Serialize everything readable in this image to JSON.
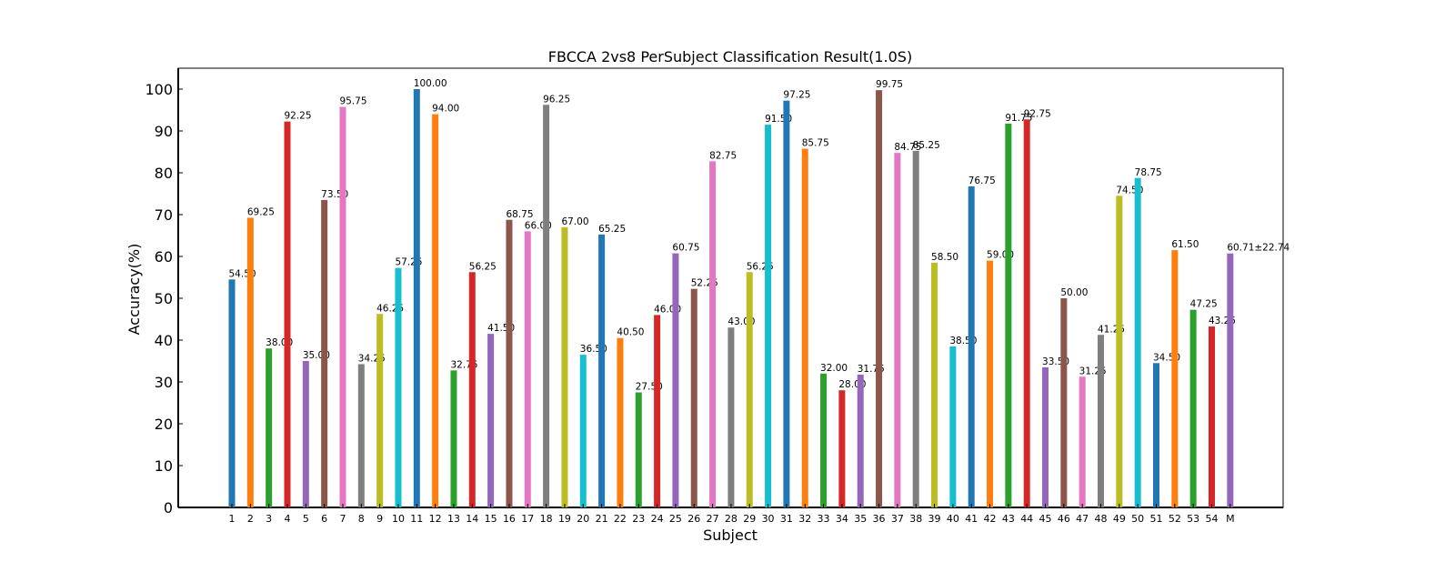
{
  "chart_data": {
    "type": "bar",
    "title": "FBCCA 2vs8 PerSubject Classification Result(1.0S)",
    "xlabel": "Subject",
    "ylabel": "Accuracy(%)",
    "ylim": [
      0,
      105
    ],
    "yticks": [
      0,
      10,
      20,
      30,
      40,
      50,
      60,
      70,
      80,
      90,
      100
    ],
    "grid": false,
    "categories": [
      "1",
      "2",
      "3",
      "4",
      "5",
      "6",
      "7",
      "8",
      "9",
      "10",
      "11",
      "12",
      "13",
      "14",
      "15",
      "16",
      "17",
      "18",
      "19",
      "20",
      "21",
      "22",
      "23",
      "24",
      "25",
      "26",
      "27",
      "28",
      "29",
      "30",
      "31",
      "32",
      "33",
      "34",
      "35",
      "36",
      "37",
      "38",
      "39",
      "40",
      "41",
      "42",
      "43",
      "44",
      "45",
      "46",
      "47",
      "48",
      "49",
      "50",
      "51",
      "52",
      "53",
      "54",
      "M"
    ],
    "values": [
      54.5,
      69.25,
      38.0,
      92.25,
      35.0,
      73.5,
      95.75,
      34.25,
      46.25,
      57.25,
      100.0,
      94.0,
      32.75,
      56.25,
      41.5,
      68.75,
      66.0,
      96.25,
      67.0,
      36.5,
      65.25,
      40.5,
      27.5,
      46.0,
      60.75,
      52.25,
      82.75,
      43.0,
      56.25,
      91.5,
      97.25,
      85.75,
      32.0,
      28.0,
      31.75,
      99.75,
      84.75,
      85.25,
      58.5,
      38.5,
      76.75,
      59.0,
      91.75,
      92.75,
      33.5,
      50.0,
      31.25,
      41.25,
      74.5,
      78.75,
      34.5,
      61.5,
      47.25,
      43.25,
      60.71
    ],
    "data_labels": [
      "54.50",
      "69.25",
      "38.00",
      "92.25",
      "35.00",
      "73.50",
      "95.75",
      "34.25",
      "46.25",
      "57.25",
      "100.00",
      "94.00",
      "32.75",
      "56.25",
      "41.50",
      "68.75",
      "66.00",
      "96.25",
      "67.00",
      "36.50",
      "65.25",
      "40.50",
      "27.50",
      "46.00",
      "60.75",
      "52.25",
      "82.75",
      "43.00",
      "56.25",
      "91.50",
      "97.25",
      "85.75",
      "32.00",
      "28.00",
      "31.75",
      "99.75",
      "84.75",
      "85.25",
      "58.50",
      "38.50",
      "76.75",
      "59.00",
      "91.75",
      "92.75",
      "33.50",
      "50.00",
      "31.25",
      "41.25",
      "74.50",
      "78.75",
      "34.50",
      "61.50",
      "47.25",
      "43.25",
      "60.71±22.74"
    ],
    "highlight_label_color": "#ff0000",
    "colors": [
      "#1f77b4",
      "#ff7f0e",
      "#2ca02c",
      "#d62728",
      "#9467bd",
      "#8c564b",
      "#e377c2",
      "#7f7f7f",
      "#bcbd22",
      "#17becf"
    ]
  }
}
